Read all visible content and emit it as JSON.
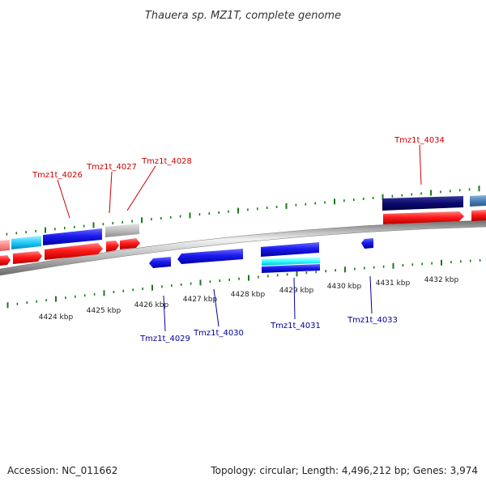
{
  "title": "Thauera sp. MZ1T, complete genome",
  "footer": {
    "accession": "Accession: NC_011662",
    "summary": "Topology: circular; Length: 4,496,212 bp; Genes: 3,974"
  },
  "colors": {
    "forward_label": "#cc0000",
    "reverse_label": "#000099",
    "tick": "#1a7a1a",
    "backbone": "#9a9a9a"
  },
  "scale_ticks": [
    "4424 kbp",
    "4425 kbp",
    "4426 kbp",
    "4427 kbp",
    "4428 kbp",
    "4429 kbp",
    "4430 kbp",
    "4431 kbp",
    "4432 kbp"
  ],
  "gene_labels": {
    "forward": [
      "Tmz1t_4026",
      "Tmz1t_4027",
      "Tmz1t_4028",
      "Tmz1t_4034"
    ],
    "reverse": [
      "Tmz1t_4029",
      "Tmz1t_4030",
      "Tmz1t_4031",
      "Tmz1t_4033"
    ]
  }
}
